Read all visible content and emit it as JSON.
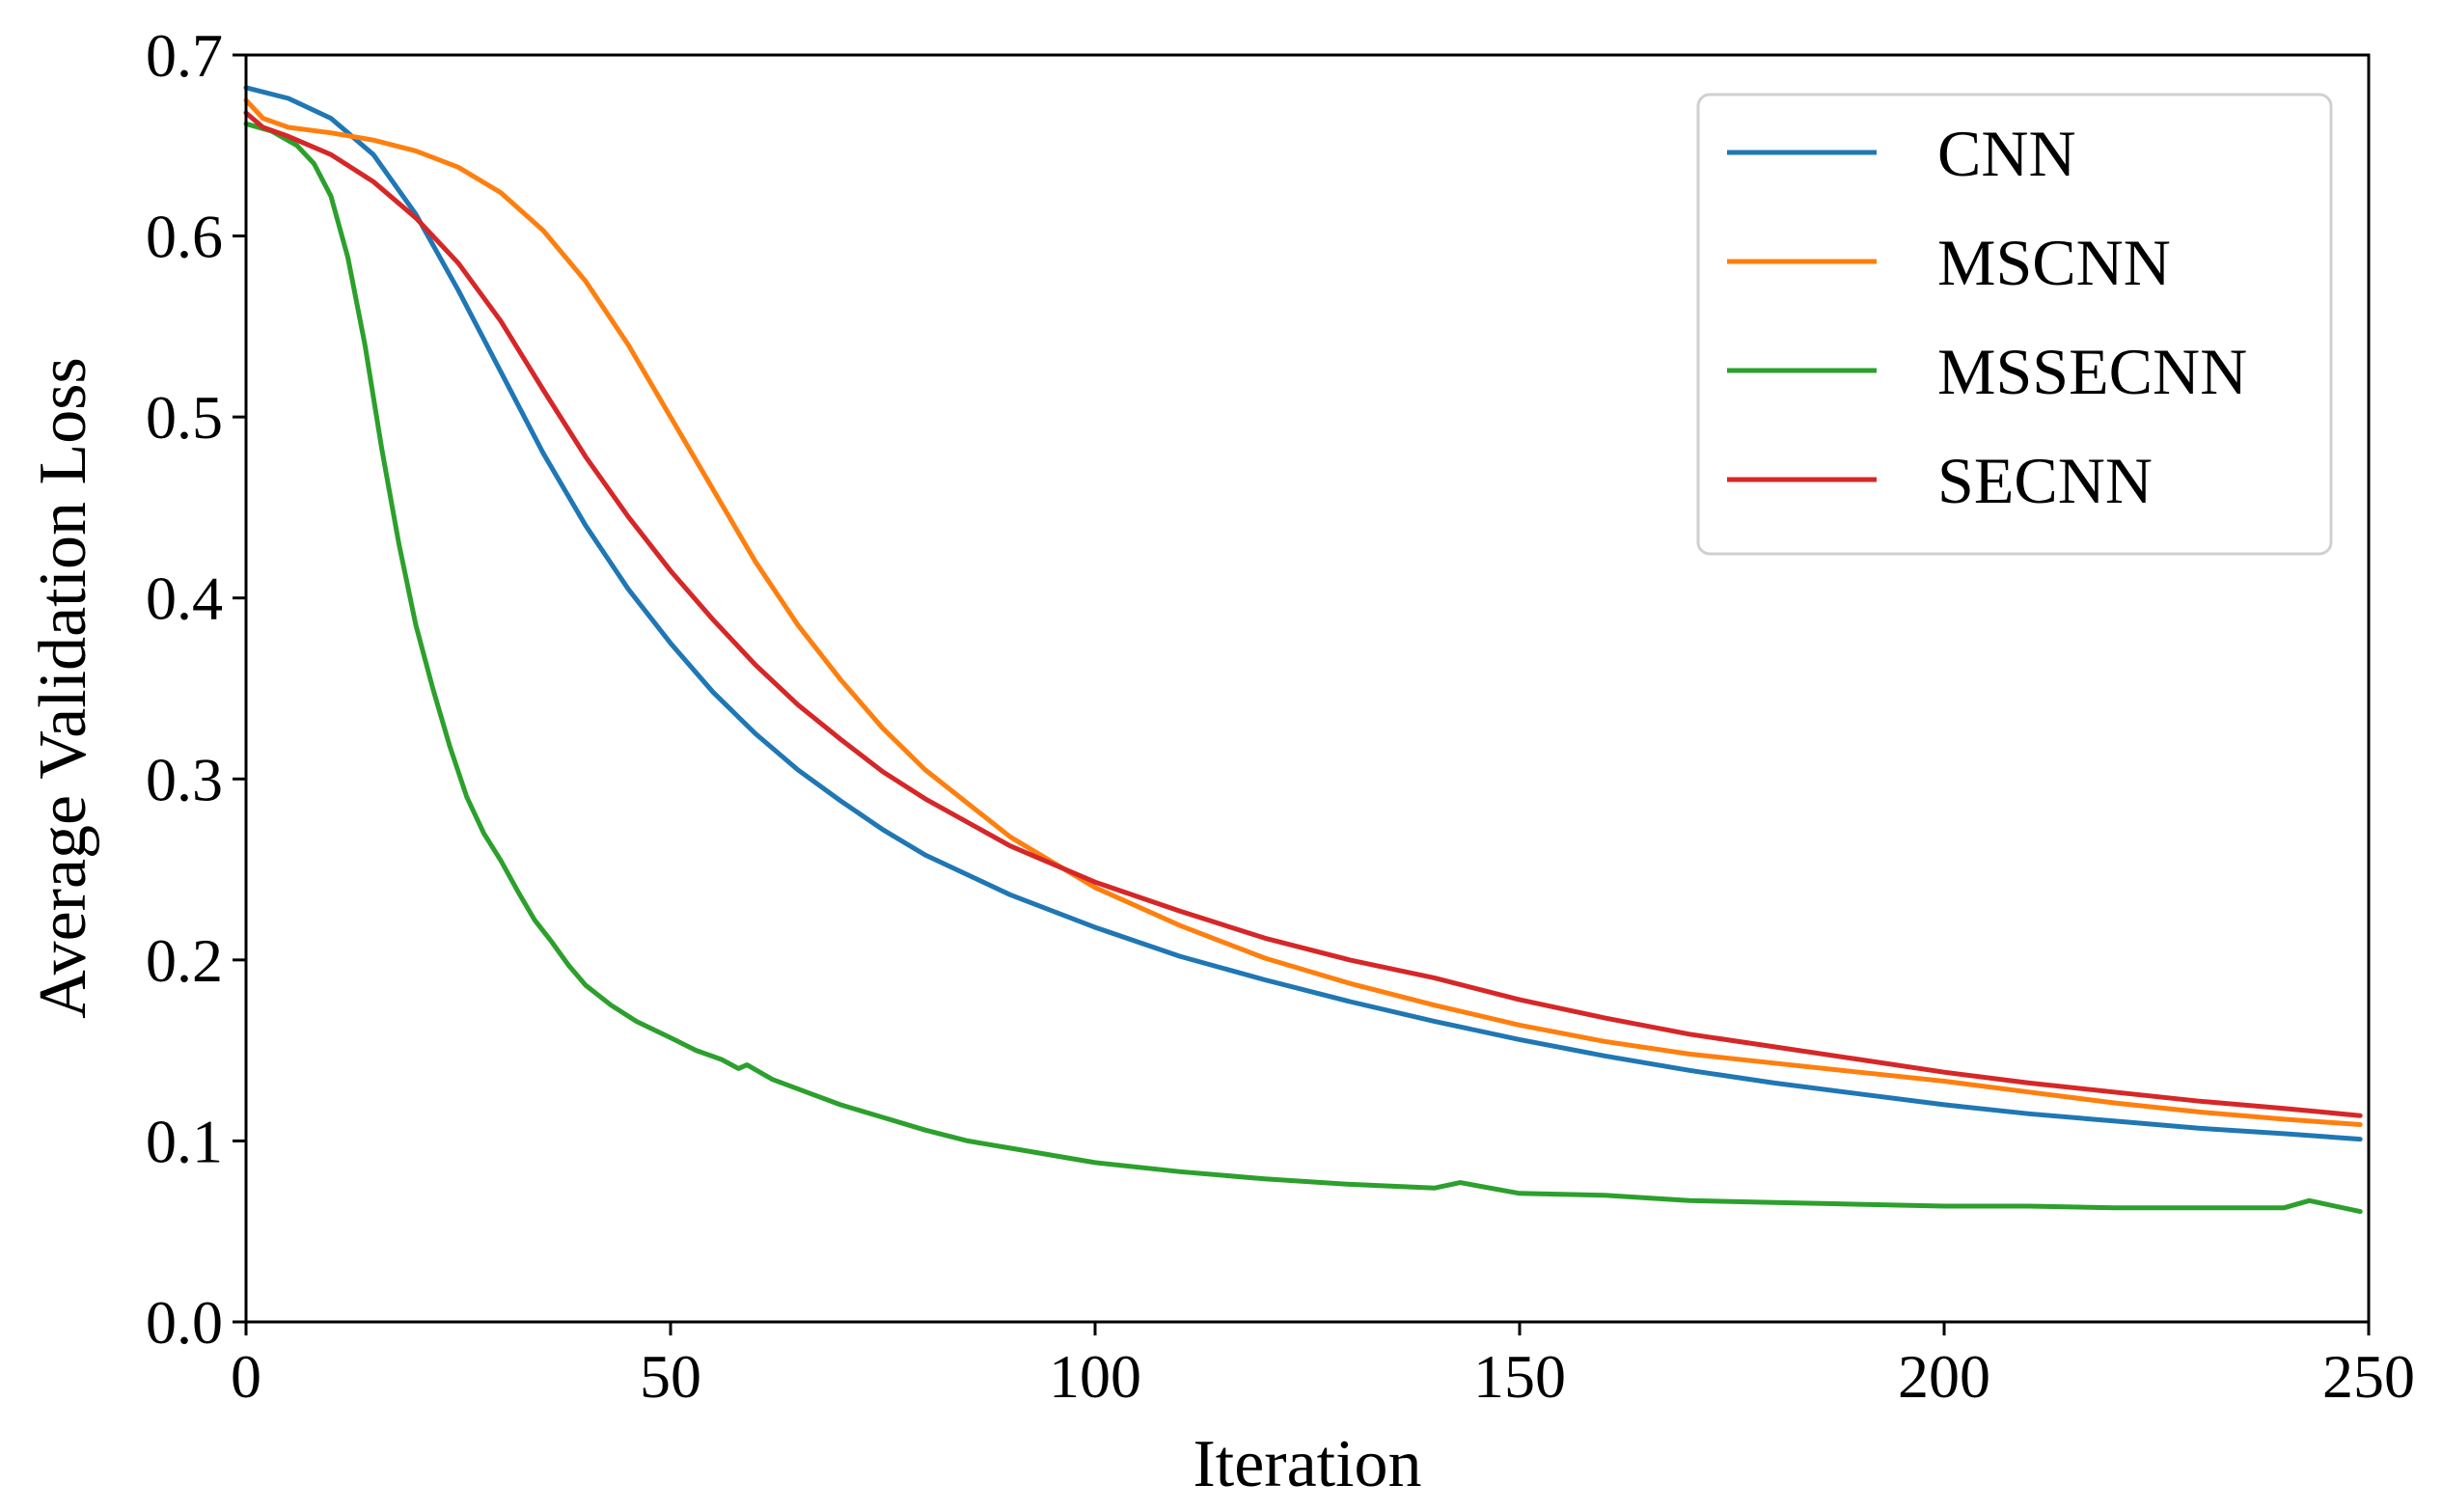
{
  "chart_data": {
    "type": "line",
    "title": "",
    "xlabel": "Iteration",
    "ylabel": "Average Validation Loss",
    "xlim": [
      0,
      250
    ],
    "ylim": [
      0.0,
      0.7
    ],
    "xticks": [
      0,
      50,
      100,
      150,
      200,
      250
    ],
    "xtick_labels": [
      "0",
      "50",
      "100",
      "150",
      "200",
      "250"
    ],
    "yticks": [
      0.0,
      0.1,
      0.2,
      0.3,
      0.4,
      0.5,
      0.6,
      0.7
    ],
    "ytick_labels": [
      "0.0",
      "0.1",
      "0.2",
      "0.3",
      "0.4",
      "0.5",
      "0.6",
      "0.7"
    ],
    "grid": false,
    "legend_position": "top-right",
    "series": [
      {
        "name": "CNN",
        "color": "#1f77b4",
        "x": [
          0,
          5,
          10,
          15,
          20,
          25,
          30,
          35,
          40,
          45,
          50,
          55,
          60,
          65,
          70,
          75,
          80,
          90,
          100,
          110,
          120,
          130,
          140,
          150,
          160,
          170,
          180,
          190,
          200,
          210,
          220,
          230,
          240,
          249
        ],
        "y": [
          0.682,
          0.676,
          0.665,
          0.645,
          0.612,
          0.57,
          0.525,
          0.48,
          0.44,
          0.405,
          0.375,
          0.348,
          0.325,
          0.305,
          0.288,
          0.272,
          0.258,
          0.236,
          0.218,
          0.202,
          0.189,
          0.177,
          0.166,
          0.156,
          0.147,
          0.139,
          0.132,
          0.126,
          0.12,
          0.115,
          0.111,
          0.107,
          0.104,
          0.101
        ]
      },
      {
        "name": "MSCNN",
        "color": "#ff7f0e",
        "x": [
          0,
          2,
          5,
          10,
          15,
          20,
          25,
          30,
          35,
          40,
          45,
          50,
          55,
          60,
          65,
          70,
          75,
          80,
          90,
          100,
          110,
          120,
          130,
          140,
          150,
          160,
          170,
          180,
          190,
          200,
          210,
          220,
          230,
          240,
          249
        ],
        "y": [
          0.675,
          0.665,
          0.66,
          0.657,
          0.653,
          0.647,
          0.638,
          0.624,
          0.603,
          0.575,
          0.54,
          0.5,
          0.46,
          0.42,
          0.385,
          0.355,
          0.328,
          0.305,
          0.268,
          0.24,
          0.219,
          0.201,
          0.187,
          0.175,
          0.164,
          0.155,
          0.148,
          0.143,
          0.138,
          0.133,
          0.127,
          0.121,
          0.116,
          0.112,
          0.109
        ]
      },
      {
        "name": "MSSECNN",
        "color": "#2ca02c",
        "x": [
          0,
          3,
          6,
          8,
          10,
          12,
          14,
          16,
          18,
          20,
          22,
          24,
          26,
          28,
          30,
          32,
          34,
          36,
          38,
          40,
          43,
          46,
          50,
          53,
          56,
          58,
          59,
          62,
          66,
          70,
          75,
          80,
          85,
          90,
          95,
          100,
          110,
          120,
          130,
          140,
          143,
          150,
          160,
          170,
          180,
          190,
          200,
          210,
          220,
          230,
          240,
          243,
          249
        ],
        "y": [
          0.662,
          0.658,
          0.65,
          0.64,
          0.622,
          0.588,
          0.54,
          0.482,
          0.43,
          0.385,
          0.35,
          0.318,
          0.29,
          0.27,
          0.255,
          0.238,
          0.222,
          0.21,
          0.197,
          0.186,
          0.175,
          0.166,
          0.157,
          0.15,
          0.145,
          0.14,
          0.142,
          0.134,
          0.127,
          0.12,
          0.113,
          0.106,
          0.1,
          0.096,
          0.092,
          0.088,
          0.083,
          0.079,
          0.076,
          0.074,
          0.077,
          0.071,
          0.07,
          0.067,
          0.066,
          0.065,
          0.064,
          0.064,
          0.063,
          0.063,
          0.063,
          0.067,
          0.061
        ]
      },
      {
        "name": "SECNN",
        "color": "#d62728",
        "x": [
          0,
          2,
          5,
          10,
          15,
          20,
          25,
          30,
          35,
          40,
          45,
          50,
          55,
          60,
          65,
          70,
          75,
          80,
          90,
          100,
          110,
          120,
          130,
          140,
          150,
          160,
          170,
          180,
          190,
          200,
          210,
          220,
          230,
          240,
          249
        ],
        "y": [
          0.668,
          0.66,
          0.655,
          0.645,
          0.63,
          0.61,
          0.585,
          0.553,
          0.515,
          0.478,
          0.445,
          0.415,
          0.388,
          0.363,
          0.341,
          0.322,
          0.304,
          0.289,
          0.263,
          0.243,
          0.227,
          0.212,
          0.2,
          0.19,
          0.178,
          0.168,
          0.159,
          0.152,
          0.145,
          0.138,
          0.132,
          0.127,
          0.122,
          0.118,
          0.114
        ]
      }
    ]
  }
}
